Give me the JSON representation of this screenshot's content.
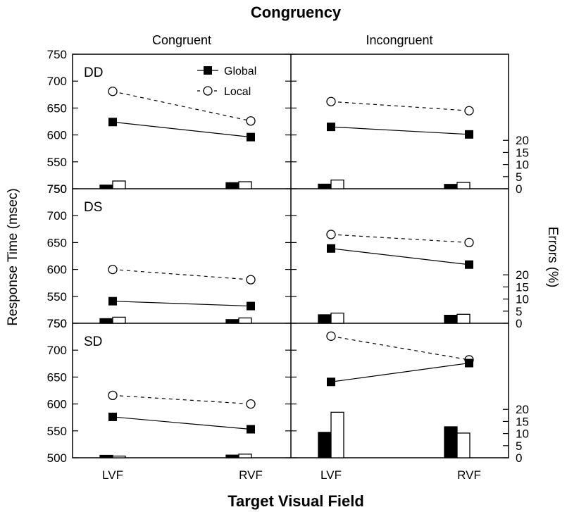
{
  "chart_data": {
    "type": "line",
    "title": "Congruency",
    "xlabel": "Target Visual Field",
    "ylabel": "Response Time (msec)",
    "y2label": "Errors (%)",
    "columns": [
      "Congruent",
      "Incongruent"
    ],
    "rows": [
      "DD",
      "DS",
      "SD"
    ],
    "x": [
      "LVF",
      "RVF"
    ],
    "rt_ylim": [
      500,
      750
    ],
    "rt_ticks": [
      500,
      550,
      600,
      650,
      700,
      750
    ],
    "error_ylim": [
      0,
      20
    ],
    "error_ticks": [
      "0",
      "5",
      "10",
      "15",
      "20"
    ],
    "legend": [
      {
        "name": "Global",
        "symbol": "filled-square",
        "line": "solid"
      },
      {
        "name": "Local",
        "symbol": "open-circle",
        "line": "dashed"
      }
    ],
    "panels": [
      {
        "row": "DD",
        "column": "Congruent",
        "rt": {
          "Global": [
            624,
            596
          ],
          "Local": [
            681,
            626
          ]
        },
        "errors": {
          "Global": [
            1.5,
            2.5
          ],
          "Local": [
            3.2,
            2.9
          ]
        }
      },
      {
        "row": "DD",
        "column": "Incongruent",
        "rt": {
          "Global": [
            615,
            601
          ],
          "Local": [
            662,
            645
          ]
        },
        "errors": {
          "Global": [
            1.9,
            1.8
          ],
          "Local": [
            3.6,
            2.6
          ]
        }
      },
      {
        "row": "DS",
        "column": "Congruent",
        "rt": {
          "Global": [
            541,
            532
          ],
          "Local": [
            600,
            581
          ]
        },
        "errors": {
          "Global": [
            1.9,
            1.5
          ],
          "Local": [
            2.5,
            2.2
          ]
        }
      },
      {
        "row": "DS",
        "column": "Incongruent",
        "rt": {
          "Global": [
            639,
            609
          ],
          "Local": [
            665,
            650
          ]
        },
        "errors": {
          "Global": [
            3.5,
            3.3
          ],
          "Local": [
            4.2,
            3.7
          ]
        }
      },
      {
        "row": "SD",
        "column": "Congruent",
        "rt": {
          "Global": [
            576,
            553
          ],
          "Local": [
            616,
            600
          ]
        },
        "errors": {
          "Global": [
            1.0,
            1.1
          ],
          "Local": [
            0.7,
            1.5
          ]
        }
      },
      {
        "row": "SD",
        "column": "Incongruent",
        "rt": {
          "Global": [
            641,
            676
          ],
          "Local": [
            726,
            682
          ]
        },
        "errors": {
          "Global": [
            10.5,
            12.8
          ],
          "Local": [
            18.8,
            10.2
          ]
        }
      }
    ]
  }
}
